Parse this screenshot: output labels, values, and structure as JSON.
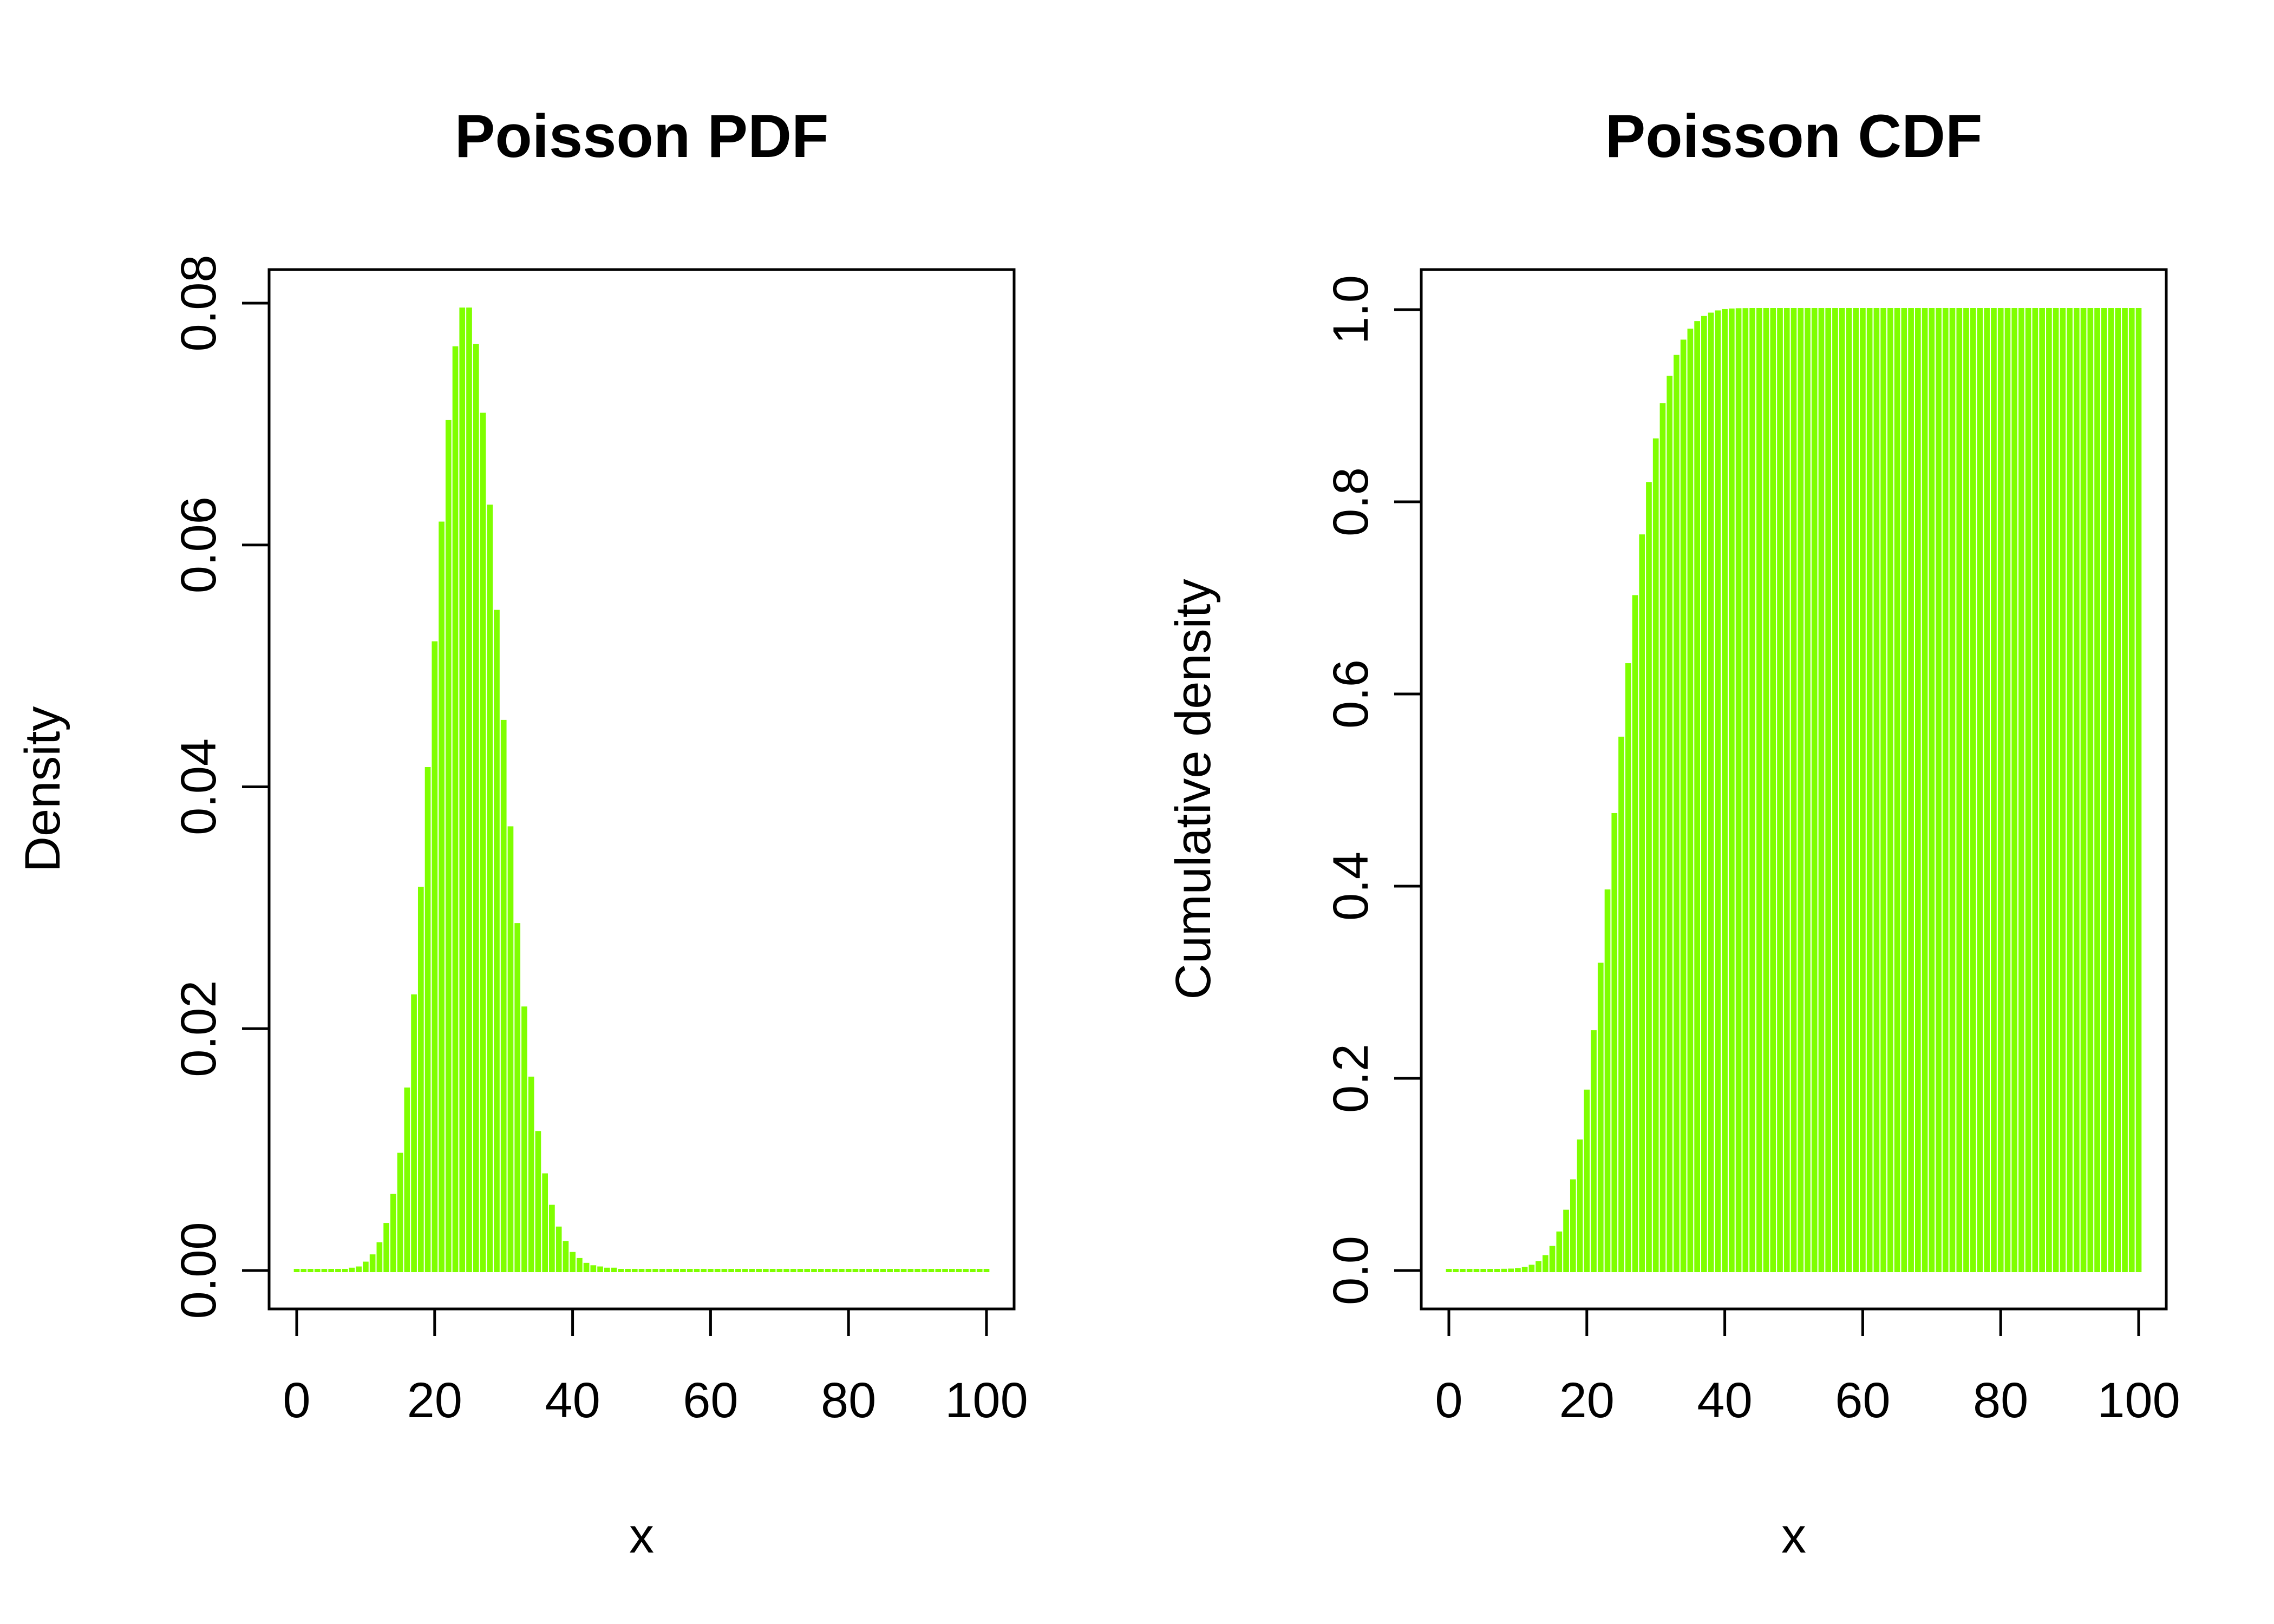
{
  "colors": {
    "series": "#7FFF00",
    "axis": "#000000",
    "background": "#ffffff"
  },
  "chart_data": [
    {
      "type": "bar",
      "title": "Poisson PDF",
      "xlabel": "x",
      "ylabel": "Density",
      "xlim": [
        0,
        100
      ],
      "ylim": [
        0,
        0.08
      ],
      "xticks": [
        "0",
        "20",
        "40",
        "60",
        "80",
        "100"
      ],
      "yticks": [
        "0.00",
        "0.02",
        "0.04",
        "0.06",
        "0.08"
      ],
      "grid": false,
      "series": [
        {
          "x": [
            0,
            1,
            2,
            3,
            4,
            5,
            6,
            7,
            8,
            9,
            10,
            11,
            12,
            13,
            14,
            15,
            16,
            17,
            18,
            19,
            20,
            21,
            22,
            23,
            24,
            25,
            26,
            27,
            28,
            29,
            30,
            31,
            32,
            33,
            34,
            35,
            36,
            37,
            38,
            39,
            40,
            41,
            42,
            43,
            44,
            45,
            46,
            47,
            48,
            49,
            50,
            51,
            52,
            53,
            54,
            55,
            56,
            57,
            58,
            59,
            60,
            61,
            62,
            63,
            64,
            65,
            66,
            67,
            68,
            69,
            70,
            71,
            72,
            73,
            74,
            75,
            76,
            77,
            78,
            79,
            80,
            81,
            82,
            83,
            84,
            85,
            86,
            87,
            88,
            89,
            90,
            91,
            92,
            93,
            94,
            95,
            96,
            97,
            98,
            99,
            100
          ],
          "values": [
            0,
            0,
            0,
            0,
            0,
            0,
            0,
            0,
            0.0001,
            0.0002,
            0.0006,
            0.0012,
            0.0022,
            0.0038,
            0.0062,
            0.0096,
            0.015,
            0.0227,
            0.0316,
            0.0415,
            0.0519,
            0.0618,
            0.0702,
            0.0763,
            0.0795,
            0.0795,
            0.0765,
            0.0708,
            0.0632,
            0.0545,
            0.0454,
            0.0366,
            0.0286,
            0.0217,
            0.0159,
            0.0114,
            0.0079,
            0.0053,
            0.0035,
            0.0023,
            0.0014,
            0.0009,
            0.0005,
            0.0003,
            0.0002,
            0.0001,
            0.0001,
            0,
            0,
            0,
            0,
            0,
            0,
            0,
            0,
            0,
            0,
            0,
            0,
            0,
            0,
            0,
            0,
            0,
            0,
            0,
            0,
            0,
            0,
            0,
            0,
            0,
            0,
            0,
            0,
            0,
            0,
            0,
            0,
            0,
            0,
            0,
            0,
            0,
            0,
            0,
            0,
            0,
            0,
            0,
            0,
            0,
            0,
            0,
            0,
            0,
            0,
            0,
            0,
            0,
            0
          ]
        }
      ]
    },
    {
      "type": "bar",
      "title": "Poisson CDF",
      "xlabel": "x",
      "ylabel": "Cumulative density",
      "xlim": [
        0,
        100
      ],
      "ylim": [
        0,
        1
      ],
      "xticks": [
        "0",
        "20",
        "40",
        "60",
        "80",
        "100"
      ],
      "yticks": [
        "0.0",
        "0.2",
        "0.4",
        "0.6",
        "0.8",
        "1.0"
      ],
      "grid": false,
      "series": [
        {
          "x": [
            0,
            1,
            2,
            3,
            4,
            5,
            6,
            7,
            8,
            9,
            10,
            11,
            12,
            13,
            14,
            15,
            16,
            17,
            18,
            19,
            20,
            21,
            22,
            23,
            24,
            25,
            26,
            27,
            28,
            29,
            30,
            31,
            32,
            33,
            34,
            35,
            36,
            37,
            38,
            39,
            40,
            41,
            42,
            43,
            44,
            45,
            46,
            47,
            48,
            49,
            50,
            51,
            52,
            53,
            54,
            55,
            56,
            57,
            58,
            59,
            60,
            61,
            62,
            63,
            64,
            65,
            66,
            67,
            68,
            69,
            70,
            71,
            72,
            73,
            74,
            75,
            76,
            77,
            78,
            79,
            80,
            81,
            82,
            83,
            84,
            85,
            86,
            87,
            88,
            89,
            90,
            91,
            92,
            93,
            94,
            95,
            96,
            97,
            98,
            99,
            100
          ],
          "values": [
            0,
            0,
            0,
            0,
            0,
            0,
            0,
            0,
            0.0001,
            0.0003,
            0.0009,
            0.0021,
            0.0043,
            0.0081,
            0.0143,
            0.0239,
            0.0389,
            0.0616,
            0.0932,
            0.1347,
            0.1866,
            0.2484,
            0.3186,
            0.3949,
            0.4744,
            0.5539,
            0.6304,
            0.7012,
            0.7644,
            0.8189,
            0.8643,
            0.9009,
            0.9295,
            0.9512,
            0.9671,
            0.9785,
            0.9864,
            0.9917,
            0.9952,
            0.9975,
            0.9989,
            0.9995,
            0.9998,
            0.9999,
            1,
            1,
            1,
            1,
            1,
            1,
            1,
            1,
            1,
            1,
            1,
            1,
            1,
            1,
            1,
            1,
            1,
            1,
            1,
            1,
            1,
            1,
            1,
            1,
            1,
            1,
            1,
            1,
            1,
            1,
            1,
            1,
            1,
            1,
            1,
            1,
            1,
            1,
            1,
            1,
            1,
            1,
            1,
            1,
            1,
            1,
            1,
            1,
            1,
            1,
            1,
            1,
            1,
            1,
            1,
            1,
            1
          ]
        }
      ]
    }
  ]
}
